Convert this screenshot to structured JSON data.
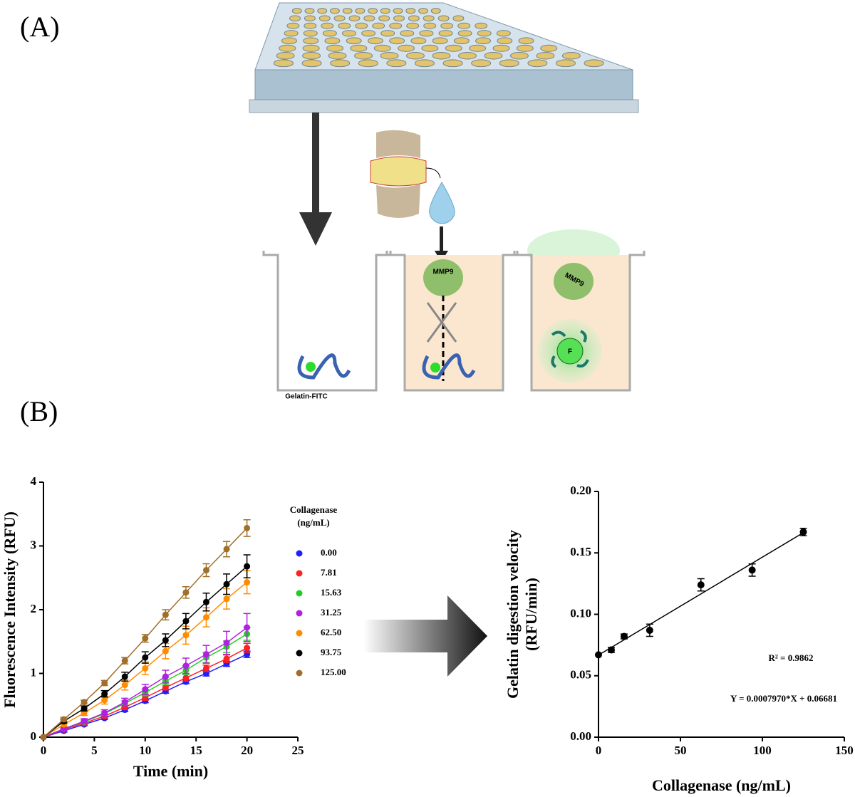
{
  "panels": [
    "(A)",
    "(B)"
  ],
  "diagram": {
    "labels": [
      "Gelatin-FITC",
      "MMP9",
      "MMP9",
      "F"
    ]
  },
  "chart_data": [
    {
      "type": "line",
      "xlabel": "Time (min)",
      "ylabel": "Fluorescence Intensity (RFU)",
      "legend_title": [
        "Collagenase",
        "(ng/mL)"
      ],
      "x": [
        0,
        2,
        4,
        6,
        8,
        10,
        12,
        14,
        16,
        18,
        20
      ],
      "xlim": [
        0,
        25
      ],
      "xticks": [
        0,
        5,
        10,
        15,
        20,
        25
      ],
      "ylim": [
        0,
        4
      ],
      "yticks": [
        0,
        1,
        2,
        3,
        4
      ],
      "series": [
        {
          "name": "0.00",
          "color": "#1f1fff",
          "values": [
            0,
            0.1,
            0.2,
            0.3,
            0.43,
            0.57,
            0.72,
            0.87,
            1.0,
            1.15,
            1.3
          ],
          "errors": [
            0,
            0.02,
            0.02,
            0.02,
            0.03,
            0.03,
            0.03,
            0.03,
            0.04,
            0.04,
            0.05
          ]
        },
        {
          "name": "7.81",
          "color": "#ff2020",
          "values": [
            0,
            0.12,
            0.22,
            0.33,
            0.47,
            0.62,
            0.78,
            0.93,
            1.08,
            1.23,
            1.4
          ],
          "errors": [
            0,
            0.02,
            0.02,
            0.03,
            0.03,
            0.04,
            0.04,
            0.05,
            0.05,
            0.06,
            0.07
          ]
        },
        {
          "name": "15.63",
          "color": "#22cc22",
          "values": [
            0,
            0.13,
            0.24,
            0.37,
            0.53,
            0.7,
            0.88,
            1.05,
            1.25,
            1.42,
            1.62
          ],
          "errors": [
            0,
            0.02,
            0.03,
            0.03,
            0.04,
            0.05,
            0.06,
            0.07,
            0.08,
            0.09,
            0.1
          ]
        },
        {
          "name": "31.25",
          "color": "#b020e0",
          "values": [
            0,
            0.13,
            0.25,
            0.38,
            0.55,
            0.75,
            0.95,
            1.12,
            1.3,
            1.48,
            1.72
          ],
          "errors": [
            0,
            0.03,
            0.04,
            0.05,
            0.06,
            0.08,
            0.1,
            0.12,
            0.14,
            0.18,
            0.22
          ]
        },
        {
          "name": "62.50",
          "color": "#ff8c00",
          "values": [
            0,
            0.2,
            0.38,
            0.58,
            0.82,
            1.08,
            1.35,
            1.6,
            1.88,
            2.17,
            2.43
          ],
          "errors": [
            0,
            0.03,
            0.04,
            0.06,
            0.08,
            0.1,
            0.12,
            0.14,
            0.15,
            0.16,
            0.18
          ]
        },
        {
          "name": "93.75",
          "color": "#000000",
          "values": [
            0,
            0.25,
            0.45,
            0.68,
            0.95,
            1.25,
            1.52,
            1.82,
            2.12,
            2.4,
            2.68
          ],
          "errors": [
            0,
            0.03,
            0.04,
            0.05,
            0.07,
            0.09,
            0.1,
            0.12,
            0.14,
            0.16,
            0.18
          ]
        },
        {
          "name": "125.00",
          "color": "#a0702a",
          "values": [
            0,
            0.28,
            0.55,
            0.85,
            1.2,
            1.55,
            1.92,
            2.27,
            2.62,
            2.95,
            3.28
          ],
          "errors": [
            0,
            0.03,
            0.03,
            0.04,
            0.05,
            0.06,
            0.08,
            0.09,
            0.1,
            0.12,
            0.13
          ]
        }
      ]
    },
    {
      "type": "scatter",
      "xlabel": "Collagenase (ng/mL)",
      "ylabel": [
        "Gelatin digestion velocity",
        "(RFU/min)"
      ],
      "x": [
        0,
        7.81,
        15.63,
        31.25,
        62.5,
        93.75,
        125
      ],
      "values": [
        0.067,
        0.071,
        0.082,
        0.087,
        0.124,
        0.136,
        0.167
      ],
      "errors": [
        0,
        0.002,
        0.002,
        0.005,
        0.005,
        0.005,
        0.003
      ],
      "color": "#000000",
      "fit": {
        "slope": 0.000797,
        "intercept": 0.06681
      },
      "xlim": [
        0,
        150
      ],
      "xticks": [
        0,
        50,
        100,
        150
      ],
      "ylim": [
        0,
        0.2
      ],
      "yticks": [
        {
          "value": 0,
          "label": "0.00"
        },
        {
          "value": 0.05,
          "label": "0.05"
        },
        {
          "value": 0.1,
          "label": "0.10"
        },
        {
          "value": 0.15,
          "label": "0.15"
        },
        {
          "value": 0.2,
          "label": "0.20"
        }
      ],
      "annotations": [
        "R² = 0.9862",
        "Y = 0.0007970*X + 0.06681"
      ]
    }
  ]
}
